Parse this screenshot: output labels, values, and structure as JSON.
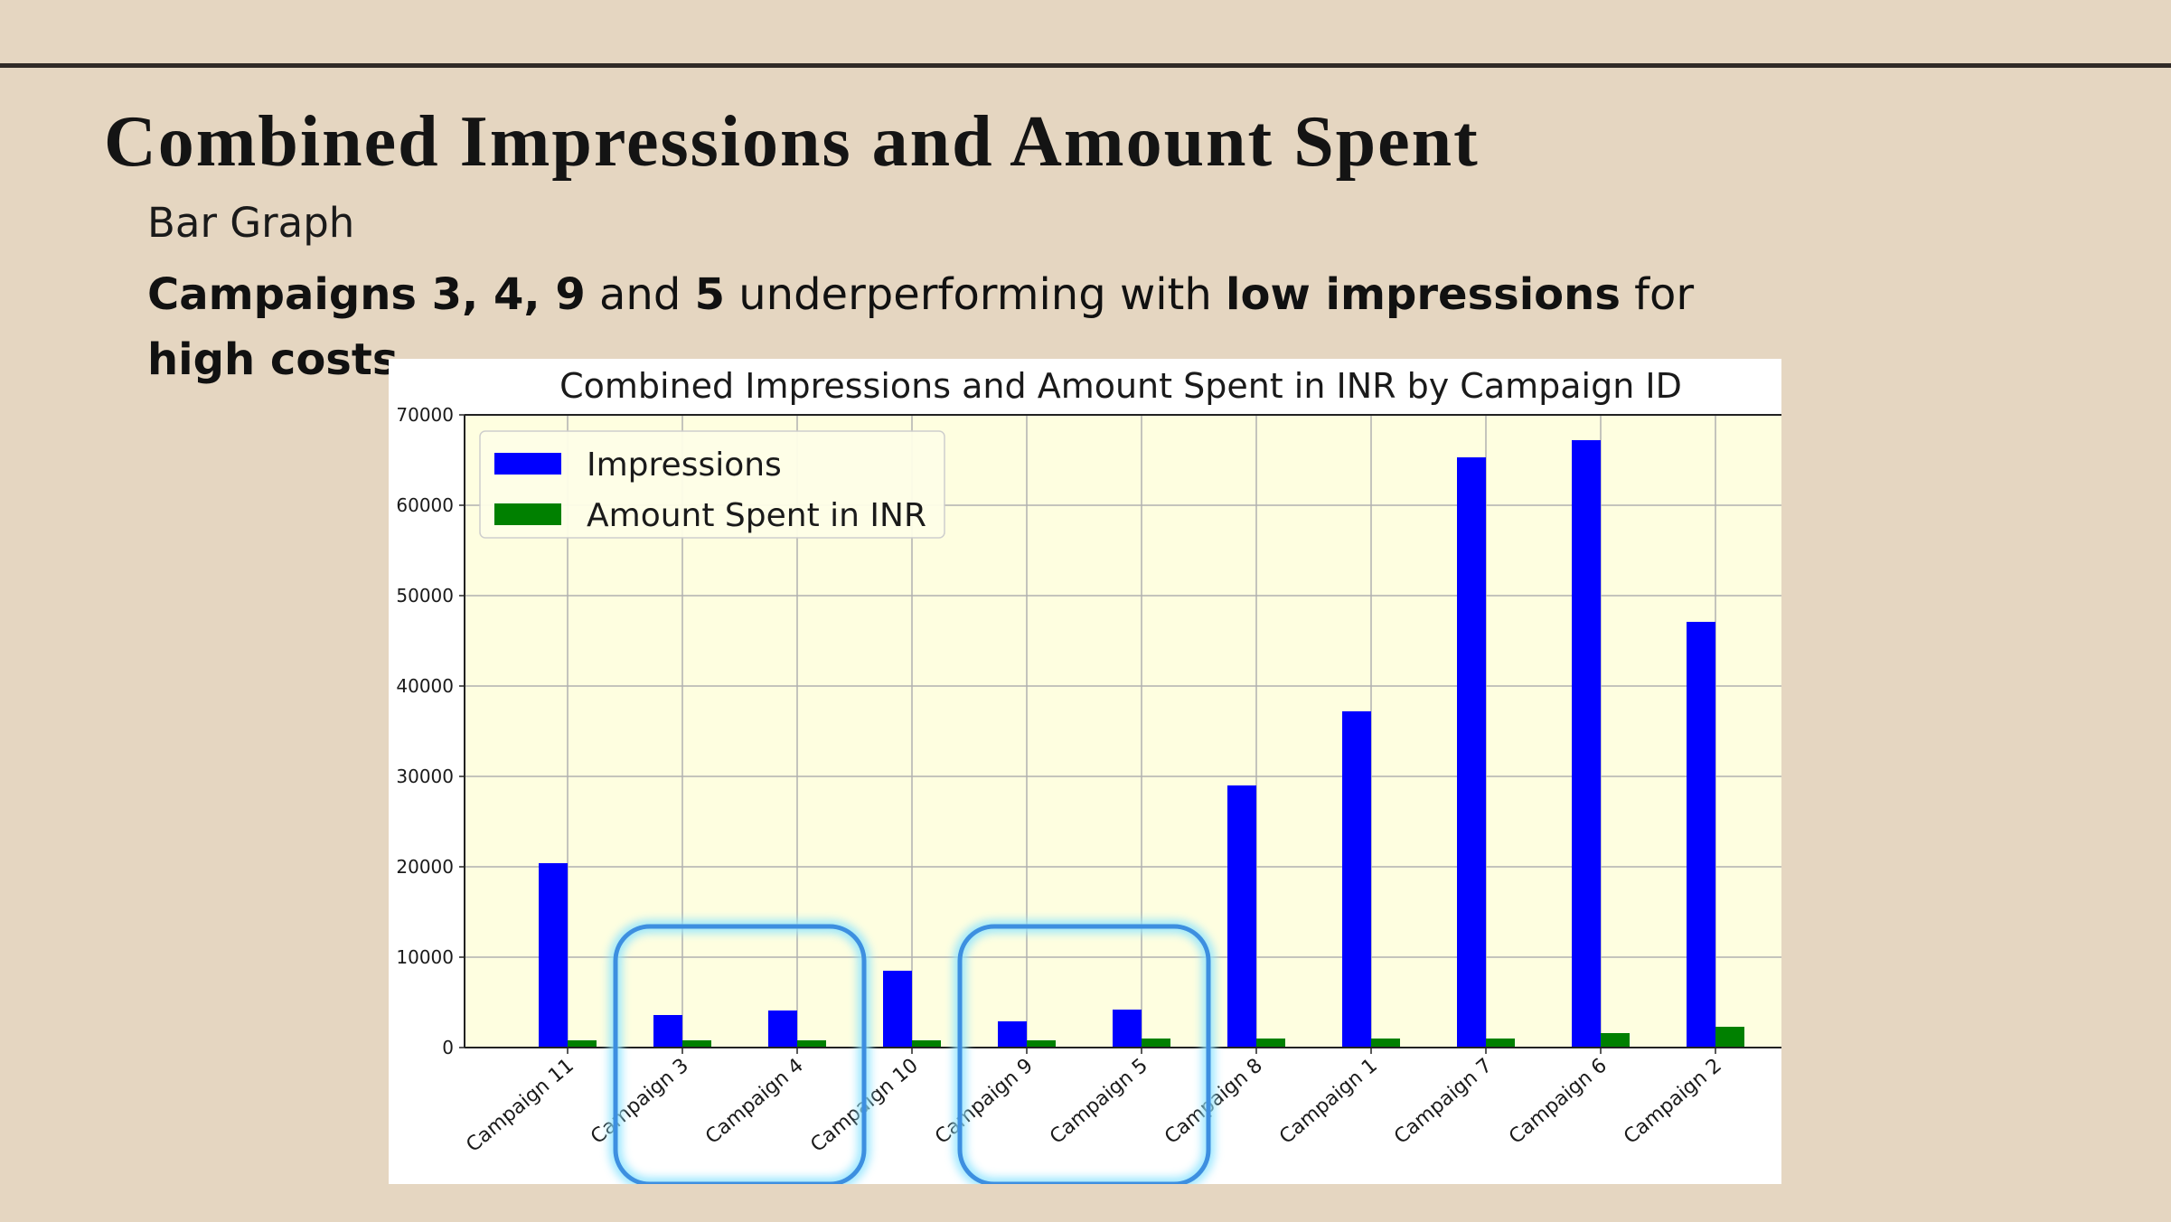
{
  "slide": {
    "title": "Combined Impressions and Amount Spent",
    "subtitle": "Bar Graph",
    "insight": {
      "p1": "Campaigns 3, 4, 9",
      "p2": " and ",
      "p3": "5",
      "p4": " underperforming with ",
      "p5": "low impressions",
      "p6": " for ",
      "p7": "high costs."
    },
    "highlights": [
      [
        "Campaign 3",
        "Campaign 4"
      ],
      [
        "Campaign 9",
        "Campaign 5"
      ]
    ]
  },
  "colors": {
    "background": "#e5d6c1",
    "plot_background": "#fefee0",
    "impressions": "#0000ff",
    "amount_spent": "#008000",
    "highlight": "#3d8fe0"
  },
  "chart_data": {
    "type": "bar",
    "title": "Combined Impressions and Amount Spent in INR by Campaign ID",
    "xlabel": "",
    "ylabel": "",
    "categories": [
      "Campaign 11",
      "Campaign 3",
      "Campaign 4",
      "Campaign 10",
      "Campaign 9",
      "Campaign 5",
      "Campaign 8",
      "Campaign 1",
      "Campaign 7",
      "Campaign 6",
      "Campaign 2"
    ],
    "series": [
      {
        "name": "Impressions",
        "values": [
          20400,
          3600,
          4100,
          8500,
          2900,
          4200,
          29000,
          37200,
          65300,
          67200,
          47100
        ]
      },
      {
        "name": "Amount Spent in INR",
        "values": [
          800,
          800,
          800,
          800,
          800,
          1000,
          1000,
          1000,
          1000,
          1600,
          2300
        ]
      }
    ],
    "ylim": [
      0,
      70000
    ],
    "yticks": [
      "0",
      "10000",
      "20000",
      "30000",
      "40000",
      "50000",
      "60000",
      "70000"
    ],
    "grid": true,
    "legend_position": "top-left"
  }
}
